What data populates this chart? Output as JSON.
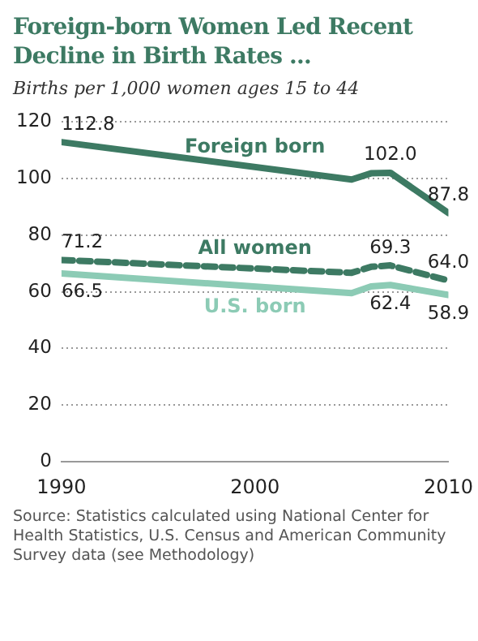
{
  "chart_data": {
    "type": "line",
    "title": "Foreign-born Women Led Recent Decline in Birth Rates ...",
    "subtitle": "Births per 1,000 women ages 15 to 44",
    "series": [
      {
        "name": "Foreign born",
        "color": "#3d7a63",
        "x": [
          1990,
          2005,
          2006,
          2007,
          2010
        ],
        "values": [
          112.8,
          99.6,
          101.8,
          102.0,
          87.8
        ],
        "value_labels": [
          "112.8",
          null,
          null,
          "102.0",
          "87.8"
        ]
      },
      {
        "name": "All women",
        "color": "#3d7a63",
        "line_style": "dashed",
        "x": [
          1990,
          2005,
          2006,
          2007,
          2010
        ],
        "values": [
          71.2,
          66.7,
          68.8,
          69.3,
          64.0
        ],
        "value_labels": [
          "71.2",
          null,
          null,
          "69.3",
          "64.0"
        ]
      },
      {
        "name": "U.S. born",
        "color": "#8ccbb5",
        "x": [
          1990,
          2005,
          2006,
          2007,
          2010
        ],
        "values": [
          66.5,
          59.5,
          61.9,
          62.4,
          58.9
        ],
        "value_labels": [
          "66.5",
          null,
          null,
          "62.4",
          "58.9"
        ]
      }
    ],
    "xlim": [
      1990,
      2010
    ],
    "xticks": [
      1990,
      2000,
      2010
    ],
    "ylim": [
      0,
      120
    ],
    "yticks": [
      0,
      20,
      40,
      60,
      80,
      100,
      120
    ],
    "grid": "y",
    "legend": false,
    "marker": "none",
    "annotations": [
      "Source: Statistics calculated using National Center for Health Statistics, U.S. Census and American Community Survey data (see Methodology)"
    ]
  }
}
